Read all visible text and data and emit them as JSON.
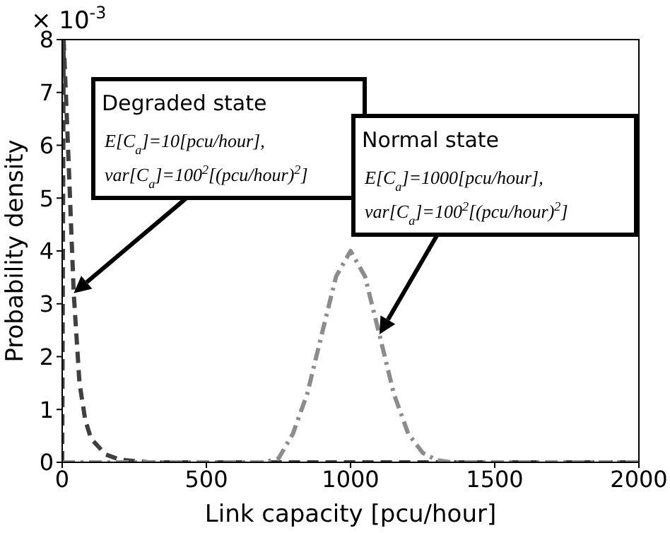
{
  "chart_data": {
    "type": "line",
    "xlabel": "Link capacity [pcu/hour]",
    "ylabel": "Probability density",
    "xlim": [
      0,
      2000
    ],
    "xticks": [
      0,
      500,
      1000,
      1500,
      2000
    ],
    "ylim": [
      0,
      8
    ],
    "yticks": [
      0,
      1,
      2,
      3,
      4,
      5,
      6,
      7,
      8
    ],
    "grid": false,
    "marker": "none",
    "series": [
      {
        "color": "#404040",
        "line_style": "dashed",
        "x": [
          0,
          5,
          20,
          40,
          60,
          80,
          100,
          150,
          200,
          300,
          2000
        ],
        "values": [
          0,
          8,
          6,
          3.2,
          1.5,
          0.8,
          0.45,
          0.15,
          0.05,
          0,
          0
        ]
      },
      {
        "color": "#8c8c8c",
        "line_style": "dashdot",
        "x": [
          0,
          700,
          750,
          800,
          850,
          900,
          950,
          1000,
          1050,
          1100,
          1150,
          1200,
          1250,
          1300,
          1350,
          2000
        ],
        "values": [
          0,
          0,
          0.07,
          0.54,
          1.3,
          2.42,
          3.52,
          4.0,
          3.52,
          2.42,
          1.3,
          0.54,
          0.18,
          0.04,
          0,
          0
        ]
      }
    ],
    "annotations": [
      "Degraded state",
      "E[C$_{a}$]=10[pcu/hour],",
      "var[C$_{a}$]=100$^{2}$[(pcu/hour)$^{2}$]",
      "Normal state",
      "E[C$_{a}$]=1000[pcu/hour],",
      "var[C$_{a}$]=100$^{2}$[(pcu/hour)$^{2}$]",
      "× 10$^{-3}$"
    ]
  }
}
